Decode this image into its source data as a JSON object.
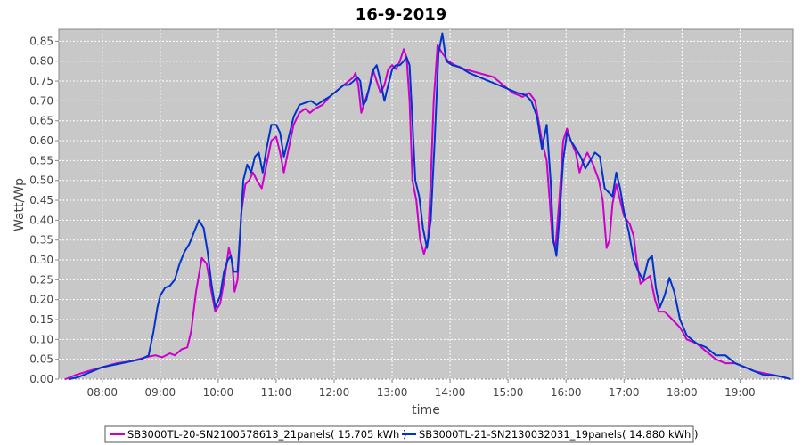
{
  "chart_data": {
    "type": "line",
    "title": "16-9-2019",
    "xlabel": "time",
    "ylabel": "Watt/Wp",
    "x_axis": {
      "type": "time",
      "range": [
        "07:15",
        "19:55"
      ],
      "ticks": [
        "08:00",
        "09:00",
        "10:00",
        "11:00",
        "12:00",
        "13:00",
        "14:00",
        "15:00",
        "16:00",
        "17:00",
        "18:00",
        "19:00"
      ]
    },
    "y_axis": {
      "range": [
        0,
        0.88
      ],
      "ticks": [
        "0.00",
        "0.05",
        "0.10",
        "0.15",
        "0.20",
        "0.25",
        "0.30",
        "0.35",
        "0.40",
        "0.45",
        "0.50",
        "0.55",
        "0.60",
        "0.65",
        "0.70",
        "0.75",
        "0.80",
        "0.85"
      ]
    },
    "grid": true,
    "legend_position": "bottom",
    "series": [
      {
        "name": "SB3000TL-20-SN2100578613_21panels( 15.705 kWh )",
        "color": "#cc00cc",
        "points": [
          [
            "07:22",
            0.0
          ],
          [
            "07:32",
            0.01
          ],
          [
            "07:45",
            0.02
          ],
          [
            "08:00",
            0.03
          ],
          [
            "08:15",
            0.04
          ],
          [
            "08:30",
            0.045
          ],
          [
            "08:45",
            0.055
          ],
          [
            "08:55",
            0.06
          ],
          [
            "09:02",
            0.055
          ],
          [
            "09:10",
            0.065
          ],
          [
            "09:15",
            0.06
          ],
          [
            "09:22",
            0.075
          ],
          [
            "09:28",
            0.08
          ],
          [
            "09:32",
            0.12
          ],
          [
            "09:37",
            0.22
          ],
          [
            "09:43",
            0.305
          ],
          [
            "09:48",
            0.29
          ],
          [
            "09:53",
            0.22
          ],
          [
            "09:57",
            0.17
          ],
          [
            "10:02",
            0.19
          ],
          [
            "10:07",
            0.26
          ],
          [
            "10:11",
            0.33
          ],
          [
            "10:14",
            0.3
          ],
          [
            "10:17",
            0.22
          ],
          [
            "10:20",
            0.25
          ],
          [
            "10:24",
            0.42
          ],
          [
            "10:28",
            0.49
          ],
          [
            "10:32",
            0.5
          ],
          [
            "10:36",
            0.52
          ],
          [
            "10:40",
            0.5
          ],
          [
            "10:45",
            0.48
          ],
          [
            "10:50",
            0.54
          ],
          [
            "10:55",
            0.6
          ],
          [
            "11:00",
            0.61
          ],
          [
            "11:04",
            0.57
          ],
          [
            "11:08",
            0.52
          ],
          [
            "11:12",
            0.57
          ],
          [
            "11:18",
            0.64
          ],
          [
            "11:24",
            0.67
          ],
          [
            "11:30",
            0.68
          ],
          [
            "11:35",
            0.67
          ],
          [
            "11:40",
            0.68
          ],
          [
            "11:48",
            0.69
          ],
          [
            "11:55",
            0.71
          ],
          [
            "12:00",
            0.72
          ],
          [
            "12:05",
            0.73
          ],
          [
            "12:10",
            0.74
          ],
          [
            "12:15",
            0.75
          ],
          [
            "12:20",
            0.76
          ],
          [
            "12:22",
            0.77
          ],
          [
            "12:25",
            0.74
          ],
          [
            "12:28",
            0.67
          ],
          [
            "12:32",
            0.7
          ],
          [
            "12:36",
            0.73
          ],
          [
            "12:40",
            0.78
          ],
          [
            "12:44",
            0.75
          ],
          [
            "12:48",
            0.72
          ],
          [
            "12:52",
            0.74
          ],
          [
            "12:56",
            0.78
          ],
          [
            "13:00",
            0.79
          ],
          [
            "13:04",
            0.78
          ],
          [
            "13:08",
            0.8
          ],
          [
            "13:12",
            0.83
          ],
          [
            "13:15",
            0.81
          ],
          [
            "13:18",
            0.7
          ],
          [
            "13:21",
            0.5
          ],
          [
            "13:25",
            0.45
          ],
          [
            "13:29",
            0.35
          ],
          [
            "13:33",
            0.315
          ],
          [
            "13:37",
            0.35
          ],
          [
            "13:40",
            0.5
          ],
          [
            "13:43",
            0.7
          ],
          [
            "13:47",
            0.84
          ],
          [
            "13:52",
            0.82
          ],
          [
            "13:58",
            0.8
          ],
          [
            "14:05",
            0.79
          ],
          [
            "14:15",
            0.78
          ],
          [
            "14:30",
            0.77
          ],
          [
            "14:45",
            0.76
          ],
          [
            "14:55",
            0.74
          ],
          [
            "15:05",
            0.72
          ],
          [
            "15:15",
            0.71
          ],
          [
            "15:22",
            0.72
          ],
          [
            "15:28",
            0.7
          ],
          [
            "15:35",
            0.6
          ],
          [
            "15:40",
            0.55
          ],
          [
            "15:43",
            0.45
          ],
          [
            "15:46",
            0.35
          ],
          [
            "15:49",
            0.33
          ],
          [
            "15:53",
            0.45
          ],
          [
            "15:57",
            0.6
          ],
          [
            "16:01",
            0.63
          ],
          [
            "16:05",
            0.6
          ],
          [
            "16:10",
            0.57
          ],
          [
            "16:14",
            0.52
          ],
          [
            "16:18",
            0.55
          ],
          [
            "16:22",
            0.57
          ],
          [
            "16:28",
            0.54
          ],
          [
            "16:34",
            0.5
          ],
          [
            "16:38",
            0.45
          ],
          [
            "16:42",
            0.33
          ],
          [
            "16:45",
            0.35
          ],
          [
            "16:48",
            0.44
          ],
          [
            "16:52",
            0.49
          ],
          [
            "16:56",
            0.45
          ],
          [
            "17:00",
            0.41
          ],
          [
            "17:06",
            0.39
          ],
          [
            "17:10",
            0.36
          ],
          [
            "17:13",
            0.3
          ],
          [
            "17:17",
            0.24
          ],
          [
            "17:22",
            0.25
          ],
          [
            "17:27",
            0.26
          ],
          [
            "17:32",
            0.2
          ],
          [
            "17:36",
            0.17
          ],
          [
            "17:42",
            0.17
          ],
          [
            "17:50",
            0.15
          ],
          [
            "17:58",
            0.13
          ],
          [
            "18:05",
            0.1
          ],
          [
            "18:15",
            0.09
          ],
          [
            "18:25",
            0.07
          ],
          [
            "18:35",
            0.05
          ],
          [
            "18:45",
            0.04
          ],
          [
            "18:55",
            0.04
          ],
          [
            "19:05",
            0.03
          ],
          [
            "19:15",
            0.02
          ],
          [
            "19:25",
            0.015
          ],
          [
            "19:35",
            0.01
          ],
          [
            "19:45",
            0.005
          ],
          [
            "19:52",
            0.0
          ]
        ]
      },
      {
        "name": "SB3000TL-21-SN2130032031_19panels( 14.880 kWh )",
        "color": "#0033cc",
        "points": [
          [
            "07:26",
            0.0
          ],
          [
            "07:35",
            0.005
          ],
          [
            "07:45",
            0.015
          ],
          [
            "08:00",
            0.03
          ],
          [
            "08:10",
            0.035
          ],
          [
            "08:20",
            0.04
          ],
          [
            "08:30",
            0.045
          ],
          [
            "08:40",
            0.05
          ],
          [
            "08:48",
            0.06
          ],
          [
            "08:53",
            0.12
          ],
          [
            "08:57",
            0.18
          ],
          [
            "09:00",
            0.21
          ],
          [
            "09:05",
            0.23
          ],
          [
            "09:10",
            0.235
          ],
          [
            "09:15",
            0.25
          ],
          [
            "09:20",
            0.29
          ],
          [
            "09:25",
            0.32
          ],
          [
            "09:30",
            0.34
          ],
          [
            "09:35",
            0.37
          ],
          [
            "09:40",
            0.4
          ],
          [
            "09:45",
            0.38
          ],
          [
            "09:49",
            0.32
          ],
          [
            "09:53",
            0.24
          ],
          [
            "09:57",
            0.18
          ],
          [
            "10:02",
            0.21
          ],
          [
            "10:06",
            0.27
          ],
          [
            "10:10",
            0.3
          ],
          [
            "10:13",
            0.31
          ],
          [
            "10:16",
            0.27
          ],
          [
            "10:20",
            0.27
          ],
          [
            "10:23",
            0.38
          ],
          [
            "10:26",
            0.5
          ],
          [
            "10:30",
            0.54
          ],
          [
            "10:34",
            0.52
          ],
          [
            "10:38",
            0.56
          ],
          [
            "10:42",
            0.57
          ],
          [
            "10:46",
            0.52
          ],
          [
            "10:50",
            0.58
          ],
          [
            "10:55",
            0.64
          ],
          [
            "11:00",
            0.64
          ],
          [
            "11:04",
            0.62
          ],
          [
            "11:08",
            0.56
          ],
          [
            "11:12",
            0.6
          ],
          [
            "11:18",
            0.66
          ],
          [
            "11:24",
            0.69
          ],
          [
            "11:30",
            0.695
          ],
          [
            "11:36",
            0.7
          ],
          [
            "11:42",
            0.69
          ],
          [
            "11:48",
            0.7
          ],
          [
            "11:55",
            0.71
          ],
          [
            "12:00",
            0.72
          ],
          [
            "12:05",
            0.73
          ],
          [
            "12:10",
            0.74
          ],
          [
            "12:15",
            0.74
          ],
          [
            "12:20",
            0.75
          ],
          [
            "12:24",
            0.76
          ],
          [
            "12:27",
            0.75
          ],
          [
            "12:30",
            0.69
          ],
          [
            "12:33",
            0.7
          ],
          [
            "12:37",
            0.74
          ],
          [
            "12:41",
            0.78
          ],
          [
            "12:44",
            0.79
          ],
          [
            "12:48",
            0.75
          ],
          [
            "12:52",
            0.7
          ],
          [
            "12:56",
            0.74
          ],
          [
            "13:00",
            0.78
          ],
          [
            "13:04",
            0.79
          ],
          [
            "13:08",
            0.79
          ],
          [
            "13:12",
            0.8
          ],
          [
            "13:15",
            0.81
          ],
          [
            "13:18",
            0.79
          ],
          [
            "13:21",
            0.65
          ],
          [
            "13:24",
            0.5
          ],
          [
            "13:28",
            0.46
          ],
          [
            "13:32",
            0.38
          ],
          [
            "13:36",
            0.33
          ],
          [
            "13:40",
            0.4
          ],
          [
            "13:44",
            0.6
          ],
          [
            "13:48",
            0.82
          ],
          [
            "13:52",
            0.87
          ],
          [
            "13:56",
            0.8
          ],
          [
            "14:02",
            0.79
          ],
          [
            "14:10",
            0.785
          ],
          [
            "14:20",
            0.77
          ],
          [
            "14:30",
            0.76
          ],
          [
            "14:40",
            0.75
          ],
          [
            "14:50",
            0.74
          ],
          [
            "15:00",
            0.73
          ],
          [
            "15:10",
            0.72
          ],
          [
            "15:18",
            0.715
          ],
          [
            "15:24",
            0.7
          ],
          [
            "15:30",
            0.66
          ],
          [
            "15:35",
            0.58
          ],
          [
            "15:40",
            0.64
          ],
          [
            "15:44",
            0.5
          ],
          [
            "15:47",
            0.35
          ],
          [
            "15:50",
            0.31
          ],
          [
            "15:53",
            0.4
          ],
          [
            "15:57",
            0.55
          ],
          [
            "16:01",
            0.62
          ],
          [
            "16:05",
            0.6
          ],
          [
            "16:10",
            0.58
          ],
          [
            "16:15",
            0.56
          ],
          [
            "16:20",
            0.53
          ],
          [
            "16:25",
            0.55
          ],
          [
            "16:30",
            0.57
          ],
          [
            "16:35",
            0.56
          ],
          [
            "16:40",
            0.48
          ],
          [
            "16:44",
            0.47
          ],
          [
            "16:48",
            0.46
          ],
          [
            "16:52",
            0.52
          ],
          [
            "16:56",
            0.48
          ],
          [
            "17:00",
            0.42
          ],
          [
            "17:05",
            0.37
          ],
          [
            "17:10",
            0.3
          ],
          [
            "17:15",
            0.27
          ],
          [
            "17:20",
            0.25
          ],
          [
            "17:25",
            0.3
          ],
          [
            "17:29",
            0.31
          ],
          [
            "17:33",
            0.23
          ],
          [
            "17:37",
            0.18
          ],
          [
            "17:42",
            0.21
          ],
          [
            "17:47",
            0.255
          ],
          [
            "17:52",
            0.22
          ],
          [
            "17:58",
            0.15
          ],
          [
            "18:05",
            0.11
          ],
          [
            "18:15",
            0.09
          ],
          [
            "18:25",
            0.08
          ],
          [
            "18:35",
            0.06
          ],
          [
            "18:45",
            0.06
          ],
          [
            "18:55",
            0.04
          ],
          [
            "19:05",
            0.03
          ],
          [
            "19:15",
            0.02
          ],
          [
            "19:25",
            0.01
          ],
          [
            "19:35",
            0.01
          ],
          [
            "19:45",
            0.005
          ],
          [
            "19:52",
            0.0
          ]
        ]
      }
    ]
  }
}
